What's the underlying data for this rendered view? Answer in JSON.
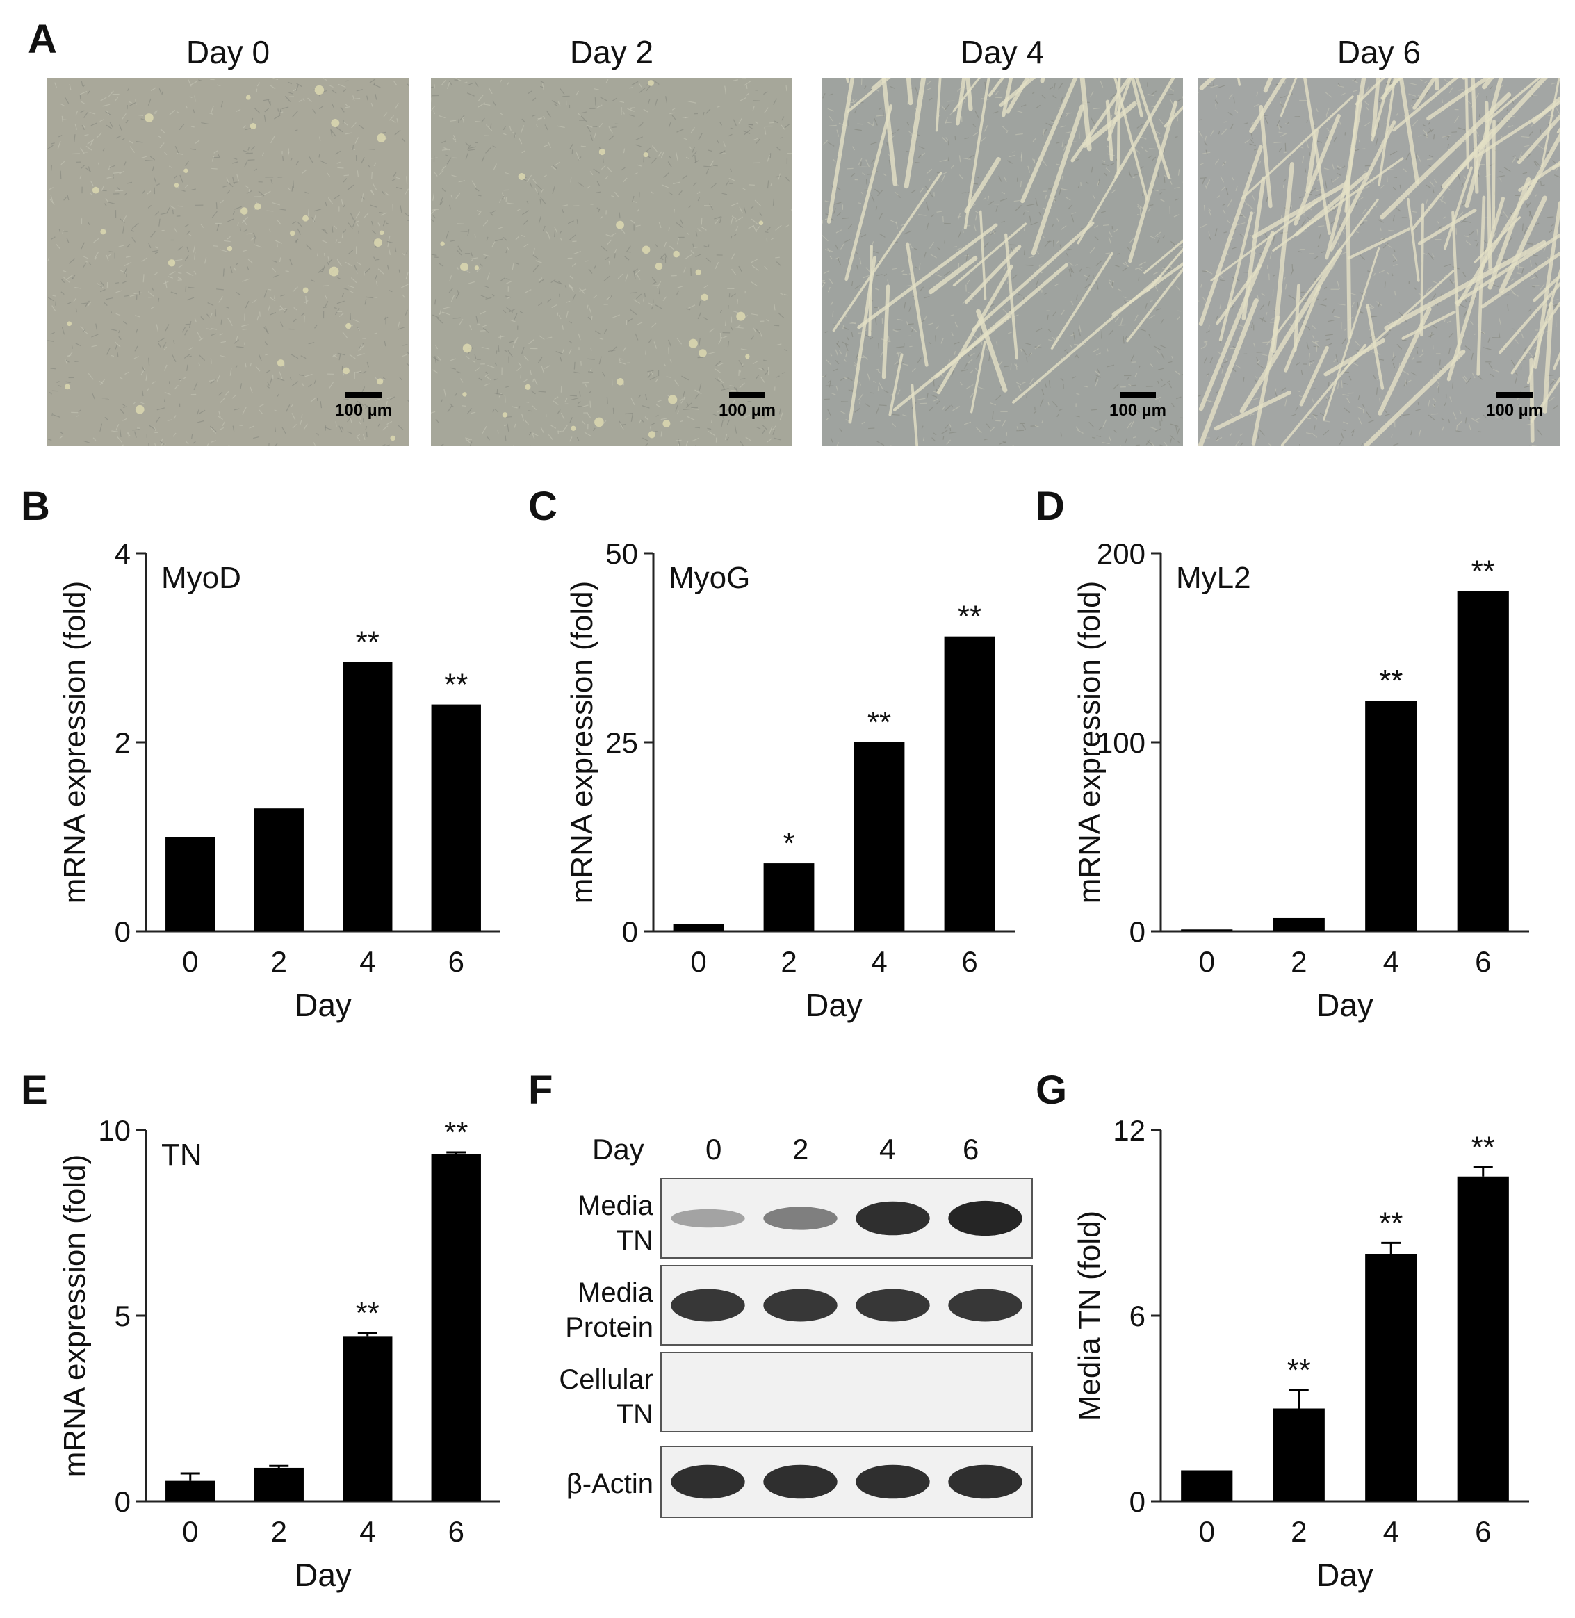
{
  "panels": {
    "A": "A",
    "B": "B",
    "C": "C",
    "D": "D",
    "E": "E",
    "F": "F",
    "G": "G"
  },
  "micrographs": [
    {
      "title": "Day 0",
      "scale_label": "100 µm",
      "tone": "#a9a89a",
      "fibers": false
    },
    {
      "title": "Day 2",
      "scale_label": "100 µm",
      "tone": "#a6a79a",
      "fibers": false
    },
    {
      "title": "Day 4",
      "scale_label": "100 µm",
      "tone": "#9fa39f",
      "fibers": true
    },
    {
      "title": "Day 6",
      "scale_label": "100 µm",
      "tone": "#a3a6a4",
      "fibers": true
    }
  ],
  "chart_data": [
    {
      "panel": "B",
      "type": "bar",
      "annotation": "MyoD",
      "categories": [
        "0",
        "2",
        "4",
        "6"
      ],
      "values": [
        1.0,
        1.3,
        2.85,
        2.4
      ],
      "errors": [
        0,
        0,
        0,
        0
      ],
      "significance": [
        "",
        "",
        "**",
        "**"
      ],
      "ylim": [
        0,
        4
      ],
      "yticks": [
        0,
        2,
        4
      ],
      "xlabel": "Day",
      "ylabel": "mRNA expression (fold)"
    },
    {
      "panel": "C",
      "type": "bar",
      "annotation": "MyoG",
      "categories": [
        "0",
        "2",
        "4",
        "6"
      ],
      "values": [
        1,
        9,
        25,
        39
      ],
      "errors": [
        0,
        0,
        0,
        0
      ],
      "significance": [
        "",
        "*",
        "**",
        "**"
      ],
      "ylim": [
        0,
        50
      ],
      "yticks": [
        0,
        25,
        50
      ],
      "xlabel": "Day",
      "ylabel": "mRNA expression (fold)"
    },
    {
      "panel": "D",
      "type": "bar",
      "annotation": "MyL2",
      "categories": [
        "0",
        "2",
        "4",
        "6"
      ],
      "values": [
        1,
        7,
        122,
        180
      ],
      "errors": [
        0,
        0,
        0,
        0
      ],
      "significance": [
        "",
        "",
        "**",
        "**"
      ],
      "ylim": [
        0,
        200
      ],
      "yticks": [
        0,
        100,
        200
      ],
      "xlabel": "Day",
      "ylabel": "mRNA expression (fold)"
    },
    {
      "panel": "E",
      "type": "bar",
      "annotation": "TN",
      "categories": [
        "0",
        "2",
        "4",
        "6"
      ],
      "values": [
        0.55,
        0.9,
        4.45,
        9.35
      ],
      "errors": [
        0.2,
        0.05,
        0.08,
        0.05
      ],
      "significance": [
        "",
        "",
        "**",
        "**"
      ],
      "ylim": [
        0,
        10
      ],
      "yticks": [
        0,
        5,
        10
      ],
      "xlabel": "Day",
      "ylabel": "mRNA expression (fold)"
    },
    {
      "panel": "G",
      "type": "bar",
      "annotation": "",
      "categories": [
        "0",
        "2",
        "4",
        "6"
      ],
      "values": [
        1.0,
        3.0,
        8.0,
        10.5
      ],
      "errors": [
        0,
        0.6,
        0.35,
        0.3
      ],
      "significance": [
        "",
        "**",
        "**",
        "**"
      ],
      "ylim": [
        0,
        12
      ],
      "yticks": [
        0,
        6,
        12
      ],
      "xlabel": "Day",
      "ylabel": "Media TN (fold)"
    }
  ],
  "blot": {
    "header_label": "Day",
    "lanes": [
      "0",
      "2",
      "4",
      "6"
    ],
    "rows": [
      {
        "label_line1": "Media",
        "label_line2": "TN",
        "intensities": [
          0.25,
          0.45,
          0.9,
          0.95
        ]
      },
      {
        "label_line1": "Media",
        "label_line2": "Protein",
        "intensities": [
          0.85,
          0.85,
          0.85,
          0.85
        ]
      },
      {
        "label_line1": "Cellular",
        "label_line2": "TN",
        "intensities": [
          0,
          0,
          0,
          0
        ]
      },
      {
        "label_line1": "β-Actin",
        "label_line2": "",
        "intensities": [
          0.9,
          0.9,
          0.9,
          0.9
        ]
      }
    ]
  }
}
